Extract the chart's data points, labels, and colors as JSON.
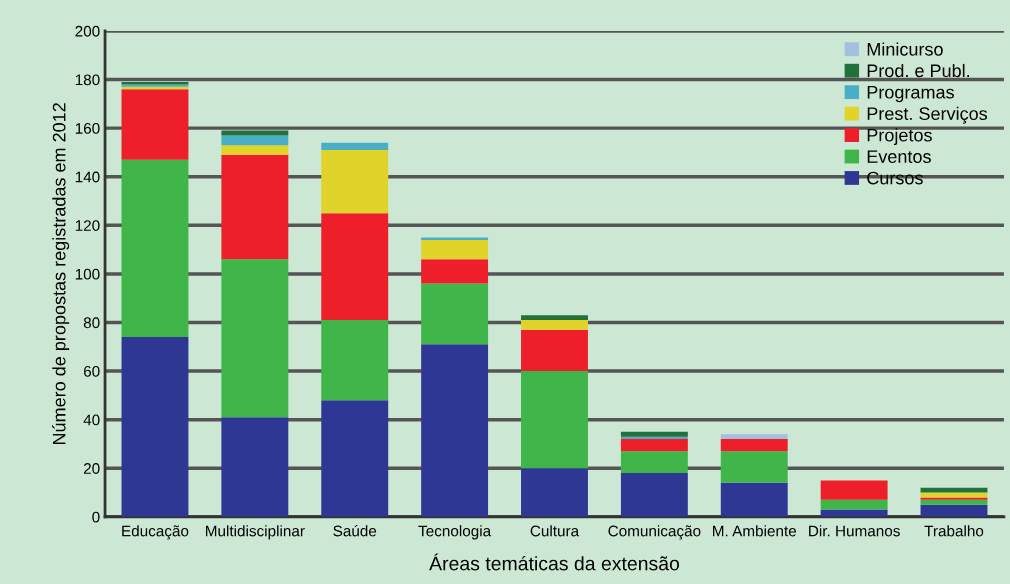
{
  "chart_data": {
    "type": "bar",
    "stacked": true,
    "xlabel": "Áreas temáticas da extensão",
    "ylabel": "Número de propostas registradas em 2012",
    "categories": [
      "Educação",
      "Multidisciplinar",
      "Saúde",
      "Tecnologia",
      "Cultura",
      "Comunicação",
      "M. Ambiente",
      "Dir. Humanos",
      "Trabalho"
    ],
    "series": [
      {
        "name": "Cursos",
        "color": "#2e3894",
        "values": [
          74,
          41,
          48,
          71,
          20,
          18,
          14,
          3,
          5
        ]
      },
      {
        "name": "Eventos",
        "color": "#3fb54a",
        "values": [
          73,
          65,
          33,
          25,
          40,
          9,
          13,
          4,
          2
        ]
      },
      {
        "name": "Projetos",
        "color": "#ed1f2a",
        "values": [
          29,
          43,
          44,
          10,
          17,
          5,
          5,
          8,
          1
        ]
      },
      {
        "name": "Prest. Serviços",
        "color": "#e0d42a",
        "values": [
          1,
          4,
          26,
          8,
          4,
          0,
          0,
          0,
          2
        ]
      },
      {
        "name": "Programas",
        "color": "#48afc6",
        "values": [
          1,
          4,
          3,
          1,
          0,
          1,
          0,
          0,
          0
        ]
      },
      {
        "name": "Prod. e Publ.",
        "color": "#22703c",
        "values": [
          1,
          2,
          0,
          0,
          2,
          2,
          0,
          0,
          2
        ]
      },
      {
        "name": "Minicurso",
        "color": "#a3c0e0",
        "values": [
          0,
          0,
          0,
          0,
          0,
          0,
          2,
          0,
          0
        ]
      }
    ],
    "ylim": [
      0,
      200
    ],
    "yticks": [
      0,
      20,
      40,
      60,
      80,
      100,
      120,
      140,
      160,
      180,
      200
    ],
    "grid": "y",
    "legend": "top right"
  }
}
